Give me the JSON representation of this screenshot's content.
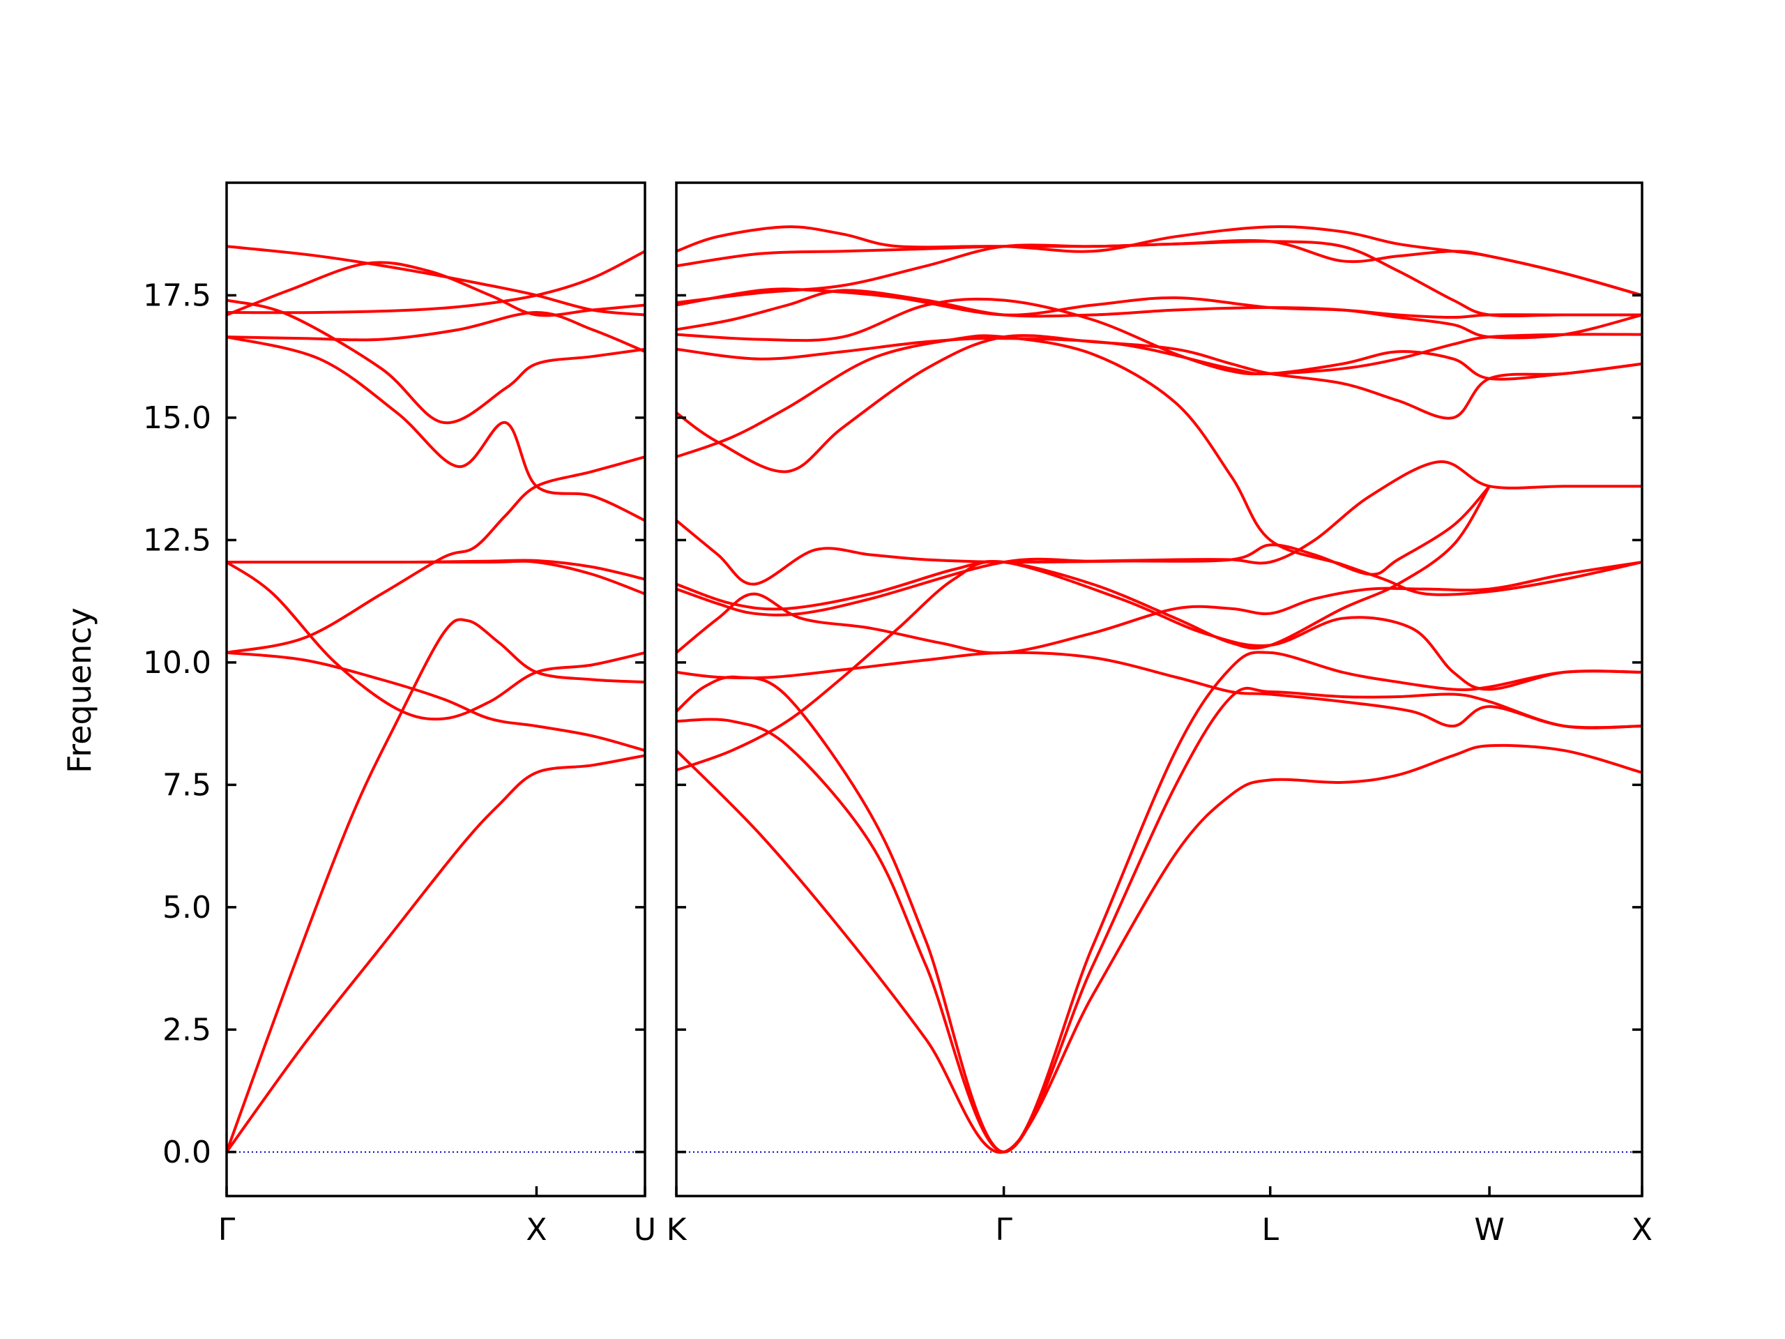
{
  "chart_data": {
    "type": "line",
    "ylabel": "Frequency",
    "ylim": [
      -0.9,
      19.8
    ],
    "yticks": [
      "0.0",
      "2.5",
      "5.0",
      "7.5",
      "10.0",
      "12.5",
      "15.0",
      "17.5"
    ],
    "colors": {
      "bands": "#ff0000",
      "zero_line": "#0000cc"
    },
    "zero_line": 0.0,
    "panels": [
      {
        "name": "left-panel",
        "xlim": [
          0,
          1.35
        ],
        "xticks": [
          {
            "label": "Γ",
            "x": 0
          },
          {
            "label": "X",
            "x": 1.0
          },
          {
            "label": "U",
            "x": 1.35
          }
        ],
        "bands": [
          {
            "x": [
              0,
              0.25,
              0.5,
              0.75,
              0.88,
              1.0,
              1.18,
              1.35
            ],
            "y": [
              0.0,
              2.2,
              4.2,
              6.2,
              7.1,
              7.75,
              7.9,
              8.1
            ]
          },
          {
            "x": [
              0,
              0.2,
              0.4,
              0.55,
              0.7,
              0.78,
              0.88,
              1.0,
              1.18,
              1.35
            ],
            "y": [
              0.0,
              3.5,
              6.8,
              8.8,
              10.6,
              10.85,
              10.4,
              9.8,
              9.65,
              9.6
            ]
          },
          {
            "x": [
              0,
              0.25,
              0.5,
              0.7,
              0.85,
              1.0,
              1.18,
              1.35
            ],
            "y": [
              10.2,
              10.05,
              9.65,
              9.25,
              8.85,
              8.7,
              8.5,
              8.2
            ]
          },
          {
            "x": [
              0,
              0.15,
              0.35,
              0.55,
              0.7,
              0.85,
              1.0,
              1.18,
              1.35
            ],
            "y": [
              12.05,
              11.4,
              10.0,
              9.05,
              8.85,
              9.2,
              9.8,
              9.95,
              10.2
            ]
          },
          {
            "x": [
              0,
              0.25,
              0.5,
              0.7,
              0.8,
              0.9,
              1.0,
              1.18,
              1.35
            ],
            "y": [
              10.2,
              10.5,
              11.4,
              12.15,
              12.35,
              13.0,
              13.6,
              13.9,
              14.2
            ]
          },
          {
            "x": [
              0,
              0.3,
              0.6,
              0.85,
              1.0,
              1.18,
              1.35
            ],
            "y": [
              12.05,
              12.05,
              12.05,
              12.07,
              12.08,
              11.95,
              11.7
            ]
          },
          {
            "x": [
              0,
              0.5,
              0.85,
              1.0,
              1.18,
              1.35
            ],
            "y": [
              12.05,
              12.05,
              12.05,
              12.05,
              11.8,
              11.4
            ]
          },
          {
            "x": [
              0,
              0.3,
              0.55,
              0.75,
              0.9,
              1.0,
              1.18,
              1.35
            ],
            "y": [
              16.65,
              16.2,
              15.1,
              14.0,
              14.9,
              13.6,
              13.4,
              12.9
            ]
          },
          {
            "x": [
              0,
              0.2,
              0.5,
              0.7,
              0.9,
              1.0,
              1.18,
              1.35
            ],
            "y": [
              17.4,
              17.1,
              16.0,
              14.9,
              15.6,
              16.1,
              16.25,
              16.4
            ]
          },
          {
            "x": [
              0,
              0.25,
              0.5,
              0.75,
              1.0,
              1.18,
              1.35
            ],
            "y": [
              16.65,
              16.62,
              16.6,
              16.8,
              17.15,
              16.8,
              16.35
            ]
          },
          {
            "x": [
              0,
              0.3,
              0.6,
              0.8,
              1.0,
              1.18,
              1.35
            ],
            "y": [
              17.15,
              17.15,
              17.2,
              17.3,
              17.5,
              17.85,
              18.4
            ]
          },
          {
            "x": [
              0,
              0.2,
              0.45,
              0.65,
              0.85,
              1.0,
              1.18,
              1.35
            ],
            "y": [
              17.1,
              17.6,
              18.15,
              18.0,
              17.5,
              17.1,
              17.2,
              17.3
            ]
          },
          {
            "x": [
              0,
              0.3,
              0.6,
              0.85,
              1.0,
              1.18,
              1.35
            ],
            "y": [
              18.5,
              18.3,
              18.0,
              17.7,
              17.5,
              17.2,
              17.1
            ]
          }
        ]
      },
      {
        "name": "right-panel",
        "xlim": [
          0,
          3.48
        ],
        "xticks": [
          {
            "label": "K",
            "x": 0
          },
          {
            "label": "Γ",
            "x": 1.18
          },
          {
            "label": "L",
            "x": 2.14
          },
          {
            "label": "W",
            "x": 2.93
          },
          {
            "label": "X",
            "x": 3.48
          }
        ],
        "bands": [
          {
            "x": [
              0,
              0.3,
              0.6,
              0.9,
              1.18,
              1.5,
              1.8,
              2.0,
              2.14,
              2.4,
              2.6,
              2.8,
              2.93,
              3.2,
              3.48
            ],
            "y": [
              8.2,
              6.5,
              4.5,
              2.3,
              0.0,
              3.2,
              6.1,
              7.3,
              7.6,
              7.55,
              7.7,
              8.1,
              8.3,
              8.2,
              7.75
            ]
          },
          {
            "x": [
              0,
              0.2,
              0.4,
              0.7,
              0.9,
              1.18,
              1.5,
              1.8,
              2.0,
              2.14,
              2.4,
              2.6,
              2.8,
              2.93,
              3.2,
              3.48
            ],
            "y": [
              8.8,
              8.8,
              8.3,
              6.3,
              3.8,
              0.0,
              3.8,
              7.5,
              9.3,
              9.4,
              9.3,
              9.3,
              9.35,
              9.2,
              8.7,
              8.7
            ]
          },
          {
            "x": [
              0,
              0.1,
              0.22,
              0.4,
              0.7,
              0.9,
              1.18,
              1.5,
              1.8,
              2.0,
              2.14,
              2.4,
              2.6,
              2.8,
              2.93,
              3.2,
              3.48
            ],
            "y": [
              9.0,
              9.5,
              9.7,
              9.3,
              6.9,
              4.3,
              0.0,
              4.2,
              8.2,
              9.9,
              10.2,
              9.8,
              9.6,
              9.45,
              9.5,
              9.8,
              9.8
            ]
          },
          {
            "x": [
              0,
              0.2,
              0.4,
              0.6,
              0.8,
              1.0,
              1.18,
              1.6,
              1.9,
              2.14,
              2.4,
              2.65,
              2.8,
              2.93,
              3.2,
              3.48
            ],
            "y": [
              7.8,
              8.2,
              8.8,
              9.7,
              10.7,
              11.7,
              12.05,
              11.3,
              10.6,
              10.35,
              10.9,
              10.7,
              9.8,
              9.45,
              9.8,
              9.8
            ]
          },
          {
            "x": [
              0,
              0.15,
              0.35,
              0.6,
              0.9,
              1.18,
              1.5,
              1.8,
              2.0,
              2.14,
              2.4,
              2.65,
              2.8,
              2.93,
              3.2,
              3.48
            ],
            "y": [
              9.8,
              9.7,
              9.7,
              9.85,
              10.05,
              10.2,
              10.1,
              9.7,
              9.4,
              9.35,
              9.2,
              9.0,
              8.7,
              9.1,
              8.7,
              8.7
            ]
          },
          {
            "x": [
              0,
              0.15,
              0.28,
              0.45,
              0.7,
              0.95,
              1.18,
              1.5,
              1.8,
              2.0,
              2.14,
              2.3,
              2.5,
              2.7,
              2.93,
              3.2,
              3.48
            ],
            "y": [
              10.2,
              10.9,
              11.4,
              10.9,
              10.7,
              10.4,
              10.2,
              10.6,
              11.1,
              11.1,
              11.0,
              11.3,
              11.5,
              11.5,
              11.5,
              11.8,
              12.05
            ]
          },
          {
            "x": [
              0,
              0.2,
              0.4,
              0.7,
              1.0,
              1.18,
              1.5,
              1.8,
              2.0,
              2.14,
              2.4,
              2.6,
              2.8,
              2.93
            ],
            "y": [
              11.6,
              11.2,
              11.1,
              11.4,
              11.9,
              12.05,
              11.6,
              10.9,
              10.4,
              10.35,
              11.1,
              11.6,
              12.4,
              13.6
            ]
          },
          {
            "x": [
              0,
              0.15,
              0.28,
              0.45,
              0.7,
              1.18,
              1.5,
              1.8,
              2.0,
              2.14,
              2.3,
              2.5,
              2.75,
              2.93,
              3.2,
              3.48
            ],
            "y": [
              11.5,
              11.2,
              11.0,
              11.0,
              11.3,
              12.05,
              12.07,
              12.1,
              12.1,
              12.05,
              12.5,
              13.4,
              14.1,
              13.6,
              13.6,
              13.6
            ]
          },
          {
            "x": [
              0,
              0.15,
              0.28,
              0.5,
              0.7,
              0.9,
              1.18,
              1.6,
              2.0,
              2.14,
              2.3,
              2.5,
              2.6,
              2.8,
              2.93
            ],
            "y": [
              12.9,
              12.2,
              11.6,
              12.3,
              12.2,
              12.1,
              12.05,
              12.07,
              12.1,
              12.4,
              12.2,
              11.8,
              12.1,
              12.8,
              13.6
            ]
          },
          {
            "x": [
              0,
              0.2,
              0.4,
              0.7,
              1.0,
              1.18,
              1.5,
              1.8,
              2.0,
              2.14,
              2.4,
              2.55,
              2.7,
              2.93,
              3.2,
              3.48
            ],
            "y": [
              14.2,
              14.6,
              15.2,
              16.2,
              16.6,
              16.65,
              16.3,
              15.3,
              13.8,
              12.5,
              12.0,
              11.7,
              11.4,
              11.45,
              11.7,
              12.05
            ]
          },
          {
            "x": [
              0,
              0.15,
              0.4,
              0.6,
              0.9,
              1.18,
              1.5,
              1.8,
              2.0,
              2.14,
              2.4,
              2.6,
              2.8,
              2.93,
              3.2,
              3.48
            ],
            "y": [
              15.1,
              14.5,
              13.9,
              14.8,
              16.0,
              16.65,
              16.55,
              16.4,
              16.1,
              15.9,
              15.7,
              15.35,
              15.0,
              15.8,
              15.9,
              16.1
            ]
          },
          {
            "x": [
              0,
              0.3,
              0.6,
              0.9,
              1.18,
              1.6,
              2.0,
              2.14,
              2.4,
              2.6,
              2.8,
              2.93,
              3.2,
              3.48
            ],
            "y": [
              16.4,
              16.2,
              16.35,
              16.55,
              16.62,
              16.5,
              16.0,
              15.9,
              16.1,
              16.35,
              16.2,
              15.8,
              15.9,
              16.1
            ]
          },
          {
            "x": [
              0,
              0.3,
              0.6,
              0.9,
              1.18,
              1.5,
              1.8,
              2.0,
              2.14,
              2.4,
              2.6,
              2.8,
              2.93,
              3.2,
              3.48
            ],
            "y": [
              16.7,
              16.6,
              16.65,
              17.3,
              17.4,
              17.0,
              16.3,
              15.95,
              15.9,
              16.0,
              16.2,
              16.5,
              16.65,
              16.7,
              16.7
            ]
          },
          {
            "x": [
              0,
              0.2,
              0.4,
              0.6,
              0.9,
              1.18,
              1.5,
              1.8,
              2.14,
              2.4,
              2.6,
              2.8,
              2.93,
              3.2,
              3.48
            ],
            "y": [
              16.8,
              17.0,
              17.3,
              17.6,
              17.4,
              17.1,
              17.1,
              17.2,
              17.25,
              17.2,
              17.05,
              16.9,
              16.65,
              16.7,
              17.1
            ]
          },
          {
            "x": [
              0,
              0.3,
              0.5,
              0.8,
              1.18,
              1.5,
              1.8,
              2.14,
              2.4,
              2.6,
              2.8,
              2.93,
              3.2,
              3.48
            ],
            "y": [
              17.3,
              17.6,
              17.6,
              17.45,
              17.1,
              17.3,
              17.45,
              17.25,
              17.2,
              17.1,
              17.05,
              17.1,
              17.1,
              17.1
            ]
          },
          {
            "x": [
              0,
              0.3,
              0.6,
              0.9,
              1.18,
              1.5,
              1.8,
              2.14,
              2.4,
              2.6,
              2.8,
              2.93,
              3.2,
              3.48
            ],
            "y": [
              17.35,
              17.55,
              17.7,
              18.1,
              18.5,
              18.5,
              18.55,
              18.6,
              18.5,
              18.0,
              17.4,
              17.1,
              17.1,
              17.1
            ]
          },
          {
            "x": [
              0,
              0.3,
              0.6,
              0.9,
              1.18,
              1.5,
              1.8,
              2.14,
              2.4,
              2.6,
              2.8,
              2.93,
              3.2,
              3.48
            ],
            "y": [
              18.1,
              18.35,
              18.4,
              18.45,
              18.5,
              18.5,
              18.55,
              18.6,
              18.2,
              18.3,
              18.4,
              18.3,
              17.95,
              17.5
            ]
          },
          {
            "x": [
              0,
              0.15,
              0.4,
              0.6,
              0.8,
              1.18,
              1.5,
              1.8,
              2.14,
              2.4,
              2.6,
              2.8,
              2.93,
              3.2,
              3.48
            ],
            "y": [
              18.4,
              18.7,
              18.9,
              18.75,
              18.5,
              18.5,
              18.4,
              18.7,
              18.9,
              18.8,
              18.55,
              18.4,
              18.3,
              17.95,
              17.5
            ]
          }
        ]
      }
    ]
  }
}
